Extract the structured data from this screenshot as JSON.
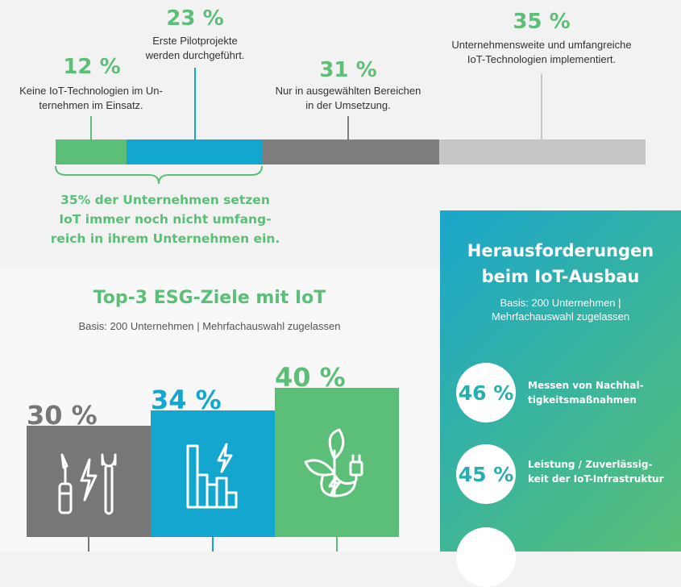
{
  "adoption": {
    "items": [
      {
        "pct": "12 %",
        "text_lines": [
          "Keine IoT-Technologien im Un-",
          "ternehmen im Einsatz."
        ],
        "color": "#5bbf77"
      },
      {
        "pct": "23 %",
        "text_lines": [
          "Erste Pilotprojekte",
          "werden durchgeführt."
        ],
        "color": "#13a7cf"
      },
      {
        "pct": "31 %",
        "text_lines": [
          "Nur in ausgewählten Bereichen",
          "in der Umsetzung."
        ],
        "color": "#7d7d7d"
      },
      {
        "pct": "35 %",
        "text_lines": [
          "Unternehmensweite und umfangreiche",
          "IoT-Technologien implementiert."
        ],
        "color": "#c6c6c6"
      }
    ],
    "note_lines": [
      "35% der Unternehmen setzen",
      "IoT immer noch nicht umfang-",
      "reich in ihrem Unternehmen ein."
    ]
  },
  "esg": {
    "title": "Top-3 ESG-Ziele mit IoT",
    "subtitle": "Basis: 200 Unternehmen | Mehrfachauswahl zugelassen",
    "bars": [
      {
        "pct": "30 %",
        "value": 30,
        "color": "#777777",
        "label_color": "#777777",
        "icon": "tools-lightning-icon"
      },
      {
        "pct": "34 %",
        "value": 34,
        "color": "#13a7cf",
        "label_color": "#13a7cf",
        "icon": "bar-chart-lightning-icon"
      },
      {
        "pct": "40 %",
        "value": 40,
        "color": "#5bbf77",
        "label_color": "#5bbf77",
        "icon": "plant-plug-icon"
      }
    ]
  },
  "challenges": {
    "title_lines": [
      "Herausforderungen",
      "beim IoT-Ausbau"
    ],
    "subtitle_lines": [
      "Basis: 200 Unternehmen |",
      "Mehrfachauswahl zugelassen"
    ],
    "items": [
      {
        "pct": "46 %",
        "label_lines": [
          "Messen von Nachhal-",
          "tigkeitsmaßnahmen"
        ]
      },
      {
        "pct": "45 %",
        "label_lines": [
          "Leistung / Zuverlässig-",
          "keit der IoT-Infrastruktur"
        ]
      }
    ]
  }
}
